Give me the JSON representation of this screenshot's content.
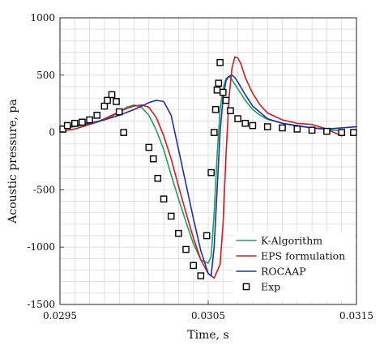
{
  "chart_data": {
    "type": "line",
    "title": "",
    "xlabel": "Time, s",
    "ylabel": "Acoustic pressure, pa",
    "xlim": [
      0.0295,
      0.0315
    ],
    "ylim": [
      -1500,
      1000
    ],
    "x_major_ticks": [
      "0.0295",
      "0.0305",
      "0.0315"
    ],
    "x_major_values": [
      0.0295,
      0.0305,
      0.0315
    ],
    "y_ticks": [
      "-1500",
      "-1000",
      "-500",
      "0",
      "500",
      "1000"
    ],
    "y_tick_values": [
      -1500,
      -1000,
      -500,
      0,
      500,
      1000
    ],
    "x_grid_step": 0.0001,
    "y_grid_step": 100,
    "grid": true,
    "legend_position": "bottom-right",
    "series": [
      {
        "name": "K-Algorithm",
        "color": "#1aa35a",
        "style": "line",
        "x": [
          0.0295,
          0.02955,
          0.0296,
          0.02965,
          0.0297,
          0.02975,
          0.0298,
          0.02985,
          0.0299,
          0.02995,
          0.03,
          0.03005,
          0.0301,
          0.03015,
          0.0302,
          0.03025,
          0.0303,
          0.03035,
          0.0304,
          0.03045,
          0.0305,
          0.03052,
          0.03054,
          0.03056,
          0.03058,
          0.0306,
          0.03062,
          0.03064,
          0.03066,
          0.0307,
          0.03075,
          0.0308,
          0.03085,
          0.0309,
          0.031,
          0.0311,
          0.0312,
          0.0313,
          0.0314
        ],
        "y": [
          30,
          40,
          50,
          60,
          75,
          90,
          110,
          140,
          180,
          220,
          240,
          220,
          150,
          20,
          -150,
          -370,
          -580,
          -780,
          -970,
          -1110,
          -1140,
          -1080,
          -700,
          -200,
          200,
          380,
          470,
          490,
          460,
          380,
          280,
          200,
          150,
          115,
          80,
          55,
          40,
          25,
          15
        ]
      },
      {
        "name": "EPS formulation",
        "color": "#d7191c",
        "style": "line",
        "x": [
          0.0295,
          0.02955,
          0.0296,
          0.02965,
          0.0297,
          0.02975,
          0.0298,
          0.02985,
          0.0299,
          0.02995,
          0.03,
          0.03005,
          0.0301,
          0.03015,
          0.0302,
          0.03025,
          0.0303,
          0.03035,
          0.0304,
          0.03045,
          0.0305,
          0.03054,
          0.03058,
          0.0306,
          0.03062,
          0.03064,
          0.03066,
          0.03068,
          0.0307,
          0.03072,
          0.03075,
          0.0308,
          0.03085,
          0.0309,
          0.031,
          0.0311,
          0.0312,
          0.0313,
          0.0314
        ],
        "y": [
          10,
          20,
          30,
          50,
          70,
          90,
          120,
          150,
          180,
          210,
          230,
          240,
          220,
          130,
          -30,
          -230,
          -470,
          -700,
          -920,
          -1110,
          -1230,
          -1270,
          -1150,
          -800,
          -200,
          300,
          560,
          660,
          650,
          600,
          480,
          340,
          240,
          170,
          110,
          80,
          70,
          30,
          -30
        ]
      },
      {
        "name": "ROCAAP",
        "color": "#1f2fb2",
        "style": "line",
        "x": [
          0.0295,
          0.0296,
          0.0297,
          0.0298,
          0.0299,
          0.03,
          0.03005,
          0.0301,
          0.03015,
          0.0302,
          0.03025,
          0.0303,
          0.03035,
          0.0304,
          0.03045,
          0.0305,
          0.03052,
          0.03054,
          0.03056,
          0.03058,
          0.0306,
          0.03062,
          0.03064,
          0.03066,
          0.03068,
          0.0307,
          0.03075,
          0.0308,
          0.0309,
          0.031,
          0.0311,
          0.0312,
          0.0313,
          0.0314,
          0.0315
        ],
        "y": [
          40,
          60,
          80,
          110,
          150,
          200,
          230,
          260,
          280,
          270,
          150,
          -150,
          -450,
          -750,
          -1030,
          -1230,
          -1250,
          -1000,
          -500,
          0,
          300,
          450,
          490,
          500,
          480,
          440,
          330,
          230,
          120,
          80,
          60,
          40,
          30,
          40,
          50
        ]
      },
      {
        "name": "Exp",
        "color": "#000000",
        "style": "marker",
        "marker": "square",
        "x": [
          0.0295,
          0.02955,
          0.0296,
          0.02965,
          0.0297,
          0.02975,
          0.0298,
          0.02982,
          0.02985,
          0.02988,
          0.0299,
          0.02993,
          0.0301,
          0.03013,
          0.03016,
          0.0302,
          0.03025,
          0.0303,
          0.03035,
          0.0304,
          0.03045,
          0.03049,
          0.03052,
          0.03054,
          0.03055,
          0.03056,
          0.03057,
          0.03058,
          0.0306,
          0.03062,
          0.03065,
          0.0307,
          0.03075,
          0.0308,
          0.0309,
          0.031,
          0.0311,
          0.0312,
          0.0313,
          0.0314,
          0.0315
        ],
        "y": [
          30,
          60,
          80,
          90,
          110,
          150,
          230,
          280,
          330,
          270,
          180,
          0,
          -130,
          -230,
          -400,
          -580,
          -730,
          -880,
          -1020,
          -1160,
          -1250,
          -900,
          -350,
          0,
          200,
          370,
          430,
          610,
          350,
          280,
          190,
          120,
          80,
          60,
          50,
          40,
          30,
          20,
          10,
          0,
          0
        ]
      }
    ]
  }
}
